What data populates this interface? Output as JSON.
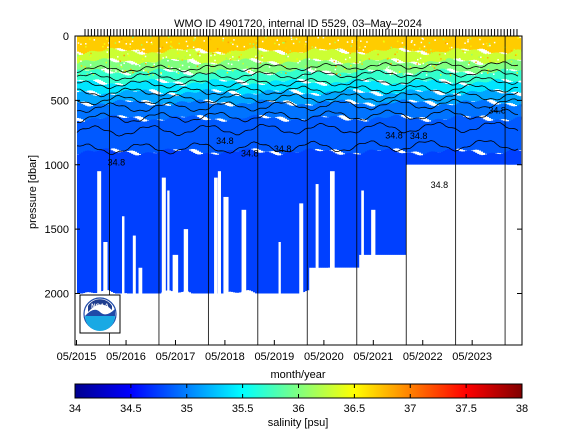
{
  "chart_data": [
    {
      "type": "heatmap",
      "title": "WMO ID 4901720, internal ID 5529, 03–May–2024",
      "xlabel": "month/year",
      "ylabel": "pressure [dbar]",
      "x_range": [
        "2015-04-20",
        "2024-05-03"
      ],
      "ylim": [
        0,
        2400
      ],
      "y_reversed": true,
      "x_tick_labels": [
        "05/2015",
        "05/2016",
        "05/2017",
        "05/2018",
        "05/2019",
        "05/2020",
        "05/2021",
        "05/2022",
        "05/2023"
      ],
      "x_tick_dates": [
        "2015-05-01",
        "2016-05-01",
        "2017-05-01",
        "2018-05-01",
        "2019-05-01",
        "2020-05-01",
        "2021-05-01",
        "2022-05-01",
        "2023-05-01"
      ],
      "y_tick_labels": [
        "0",
        "500",
        "1000",
        "1500",
        "2000"
      ],
      "y_ticks": [
        0,
        500,
        1000,
        1500,
        2000
      ],
      "vertical_markers": [
        "2015-12-30",
        "2016-12-30",
        "2017-12-30",
        "2018-12-30",
        "2019-12-30",
        "2020-12-30",
        "2021-12-30",
        "2022-12-30",
        "2023-12-30"
      ],
      "contour_levels": [
        34.8,
        35,
        35.5,
        36
      ],
      "contour_labels": [
        {
          "text": "34.8",
          "x": "2016-02-20",
          "y": 1005
        },
        {
          "text": "34.8",
          "x": "2018-05-01",
          "y": 840
        },
        {
          "text": "34.8",
          "x": "2018-11-01",
          "y": 935
        },
        {
          "text": "34.8",
          "x": "2019-07-01",
          "y": 900
        },
        {
          "text": "34.8",
          "x": "2021-10-01",
          "y": 795
        },
        {
          "text": "34.8",
          "x": "2022-04-01",
          "y": 800
        },
        {
          "text": "34.8",
          "x": "2022-09-01",
          "y": 1180
        },
        {
          "text": "34.8",
          "x": "2023-11-01",
          "y": 600
        }
      ],
      "profile_stats": {
        "max_pressure_by_year": [
          {
            "year": 2015,
            "dbar": 2000
          },
          {
            "year": 2016,
            "dbar": 2000
          },
          {
            "year": 2017,
            "dbar": 2000
          },
          {
            "year": 2018,
            "dbar": 2000
          },
          {
            "year": 2019,
            "dbar": 2000
          },
          {
            "year": 2020,
            "dbar": 1800
          },
          {
            "year": 2021,
            "dbar": 1700
          },
          {
            "year": 2022,
            "dbar": 1000
          },
          {
            "year": 2023,
            "dbar": 1000
          }
        ]
      }
    },
    {
      "type": "colorbar",
      "xlabel": "salinity [psu]",
      "range": [
        34,
        38
      ],
      "tick_labels": [
        "34",
        "34.5",
        "35",
        "35.5",
        "36",
        "36.5",
        "37",
        "37.5",
        "38"
      ],
      "ticks": [
        34,
        34.5,
        35,
        35.5,
        36,
        36.5,
        37,
        37.5,
        38
      ],
      "colormap": "jet"
    }
  ],
  "logo": {
    "text": "NOAA"
  }
}
